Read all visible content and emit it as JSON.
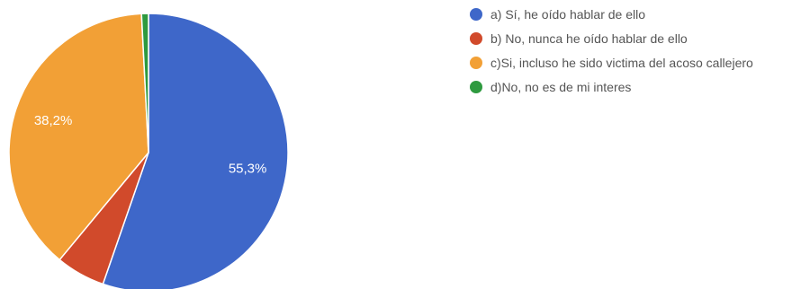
{
  "chart_data": {
    "type": "pie",
    "categories": [
      "a) Sí, he oído hablar de ello",
      "b) No, nunca he oído hablar de ello",
      "c)Si, incluso he sido victima del acoso callejero",
      "d)No, no es de mi interes"
    ],
    "values": [
      55.3,
      5.7,
      38.2,
      0.8
    ],
    "data_labels": [
      "55,3%",
      "",
      "38,2%",
      ""
    ],
    "colors": [
      "#3e67c9",
      "#d14a2b",
      "#f2a036",
      "#2e9a3f"
    ],
    "legend_position": "right",
    "start_angle_deg": 90,
    "direction": "clockwise"
  }
}
